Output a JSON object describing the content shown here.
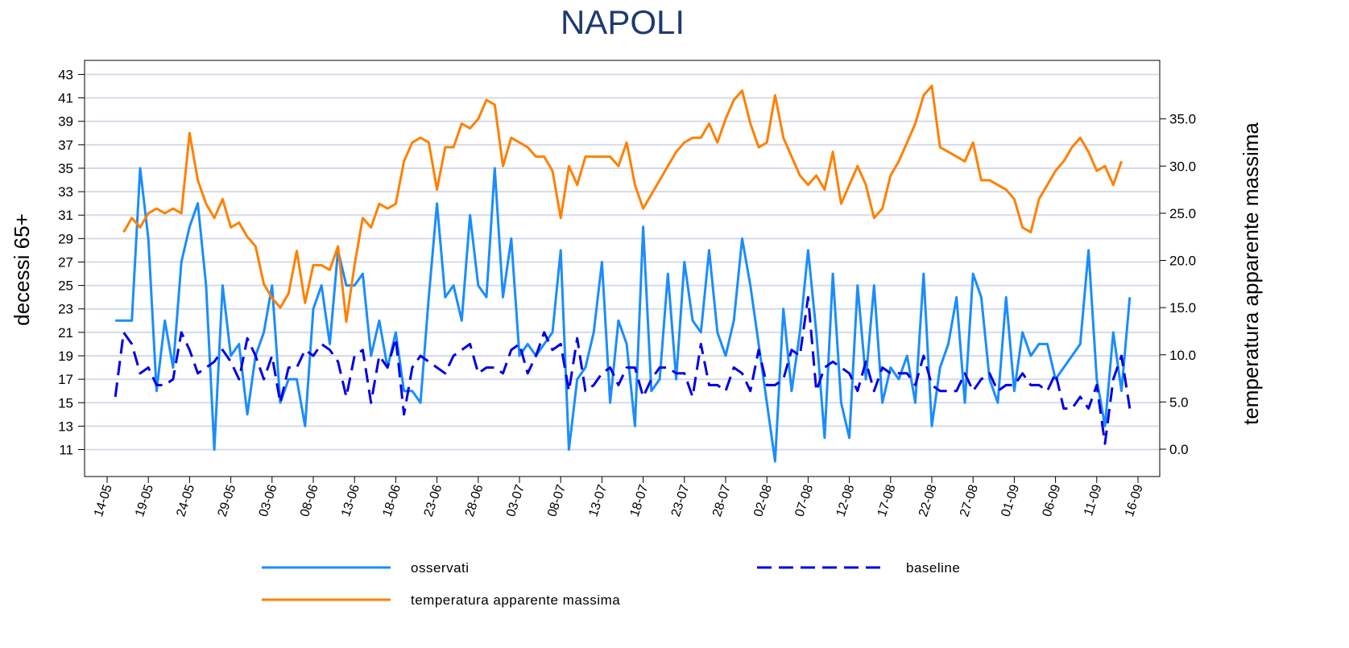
{
  "chart_data": {
    "type": "line",
    "title": "NAPOLI",
    "ylabel": "decessi 65+",
    "y2label": "temperatura apparente massima",
    "categories": [
      "14-05",
      null,
      null,
      null,
      null,
      "19-05",
      null,
      null,
      null,
      null,
      "24-05",
      null,
      null,
      null,
      null,
      "29-05",
      null,
      null,
      null,
      null,
      "03-06",
      null,
      null,
      null,
      null,
      "08-06",
      null,
      null,
      null,
      null,
      "13-06",
      null,
      null,
      null,
      null,
      "18-06",
      null,
      null,
      null,
      null,
      "23-06",
      null,
      null,
      null,
      null,
      "28-06",
      null,
      null,
      null,
      null,
      "03-07",
      null,
      null,
      null,
      null,
      "08-07",
      null,
      null,
      null,
      null,
      "13-07",
      null,
      null,
      null,
      null,
      "18-07",
      null,
      null,
      null,
      null,
      "23-07",
      null,
      null,
      null,
      null,
      "28-07",
      null,
      null,
      null,
      null,
      "02-08",
      null,
      null,
      null,
      null,
      "07-08",
      null,
      null,
      null,
      null,
      "12-08",
      null,
      null,
      null,
      null,
      "17-08",
      null,
      null,
      null,
      null,
      "22-08",
      null,
      null,
      null,
      null,
      "27-08",
      null,
      null,
      null,
      null,
      "01-09",
      null,
      null,
      null,
      null,
      "06-09",
      null,
      null,
      null,
      null,
      "11-09",
      null,
      null,
      null,
      null,
      "16-09"
    ],
    "series": [
      {
        "name": "osservati",
        "color": "#1a8cff",
        "dash": false,
        "values": [
          null,
          22,
          22,
          22,
          35,
          29,
          16,
          22,
          18,
          27,
          30,
          32,
          25,
          11,
          25,
          19,
          20,
          14,
          19,
          21,
          25,
          15,
          17,
          17,
          13,
          23,
          25,
          20,
          28,
          25,
          25,
          26,
          19,
          22,
          18,
          21,
          16,
          16,
          15,
          24,
          32,
          24,
          25,
          22,
          31,
          25,
          24,
          35,
          24,
          29,
          19,
          20,
          19,
          20,
          21,
          28,
          11,
          17,
          18,
          21,
          27,
          15,
          22,
          20,
          13,
          30,
          16,
          17,
          26,
          17,
          27,
          22,
          21,
          28,
          21,
          19,
          22,
          29,
          25,
          20,
          15,
          10,
          23,
          16,
          21,
          28,
          21,
          12,
          26,
          15,
          12,
          25,
          17,
          25,
          15,
          18,
          17,
          19,
          15,
          26,
          13,
          18,
          20,
          24,
          15,
          26,
          24,
          17,
          15,
          24,
          16,
          21,
          19,
          20,
          20,
          17,
          18,
          19,
          20,
          28,
          17,
          13,
          21,
          16,
          24,
          null
        ]
      },
      {
        "name": "baseline",
        "color": "#0000e6",
        "dash": true,
        "values": [
          null,
          15.5,
          21,
          20,
          17.5,
          18,
          16.5,
          16.5,
          17,
          21,
          19.5,
          17.5,
          18,
          18.5,
          19.5,
          18.5,
          17,
          20.5,
          19,
          17,
          19,
          15,
          18,
          18,
          19.5,
          19,
          20,
          19.5,
          18.5,
          15.5,
          19,
          19.5,
          15,
          19,
          18,
          20.5,
          14,
          18,
          19,
          18.5,
          18,
          17.5,
          19,
          19.5,
          20,
          17.5,
          18,
          18,
          17.5,
          19.5,
          20,
          17.5,
          19,
          21,
          19.5,
          20,
          16,
          20.5,
          16,
          16.5,
          17.5,
          18,
          16.5,
          18,
          18,
          15.5,
          17,
          18,
          18,
          17.5,
          17.5,
          15.5,
          20,
          16.5,
          16.5,
          16,
          18,
          17.5,
          16,
          19.5,
          16.5,
          16.5,
          17,
          19.5,
          19,
          24,
          16,
          18,
          18.5,
          18,
          17.5,
          16,
          18.5,
          16,
          18,
          17.5,
          17.5,
          17.5,
          16.5,
          19,
          16.5,
          16,
          16,
          16,
          17.5,
          16,
          17,
          17.5,
          16,
          16.5,
          16.5,
          17.5,
          16.5,
          16.5,
          16,
          17.5,
          14.5,
          14.5,
          15.5,
          14.5,
          16.5,
          11.5,
          17,
          19,
          14.5,
          null
        ]
      },
      {
        "name": "temperatura apparente massima",
        "color": "#ff8000",
        "dash": false,
        "axis": "y2",
        "values": [
          null,
          null,
          23,
          24.5,
          23.5,
          25,
          25.5,
          25,
          25.5,
          25,
          33.5,
          28.5,
          26,
          24.5,
          26.5,
          23.5,
          24,
          22.5,
          21.5,
          17.5,
          16,
          15,
          16.5,
          21,
          15.5,
          19.5,
          19.5,
          19,
          21.5,
          13.5,
          19.5,
          24.5,
          23.5,
          26,
          25.5,
          26,
          30.5,
          32.5,
          33,
          32.5,
          27.5,
          32,
          32,
          34.5,
          34,
          35,
          37,
          36.5,
          30,
          33,
          32.5,
          32,
          31,
          31,
          29.5,
          24.5,
          30,
          28,
          31,
          31,
          31,
          31,
          30,
          32.5,
          28,
          25.5,
          27,
          28.5,
          30,
          31.5,
          32.5,
          33,
          33,
          34.5,
          32.5,
          35,
          37,
          38,
          34.5,
          32,
          32.5,
          37.5,
          33,
          31,
          29,
          28,
          29,
          27.5,
          31.5,
          26,
          28,
          30,
          28,
          24.5,
          25.5,
          29,
          30.5,
          32.5,
          34.5,
          37.5,
          38.5,
          32,
          31.5,
          31,
          30.5,
          32.5,
          28.5,
          28.5,
          28,
          27.5,
          26.5,
          23.5,
          23,
          26.5,
          28,
          29.5,
          30.5,
          32,
          33,
          31.5,
          29.5,
          30,
          28,
          30.5,
          null,
          null
        ]
      }
    ],
    "ylim": [
      8.7,
      44.2
    ],
    "yticks": [
      11,
      13,
      15,
      17,
      19,
      21,
      23,
      25,
      27,
      29,
      31,
      33,
      35,
      37,
      39,
      41,
      43
    ],
    "y2lim": [
      -2.9,
      41.2
    ],
    "y2ticks": [
      {
        "value": 0,
        "label": "0.0"
      },
      {
        "value": 5,
        "label": "5.0"
      },
      {
        "value": 10,
        "label": "10.0"
      },
      {
        "value": 15,
        "label": "15.0"
      },
      {
        "value": 20,
        "label": "20.0"
      },
      {
        "value": 25,
        "label": "25.0"
      },
      {
        "value": 30,
        "label": "30.0"
      },
      {
        "value": 35,
        "label": "35.0"
      }
    ],
    "grid": true,
    "legend": "bottom"
  }
}
